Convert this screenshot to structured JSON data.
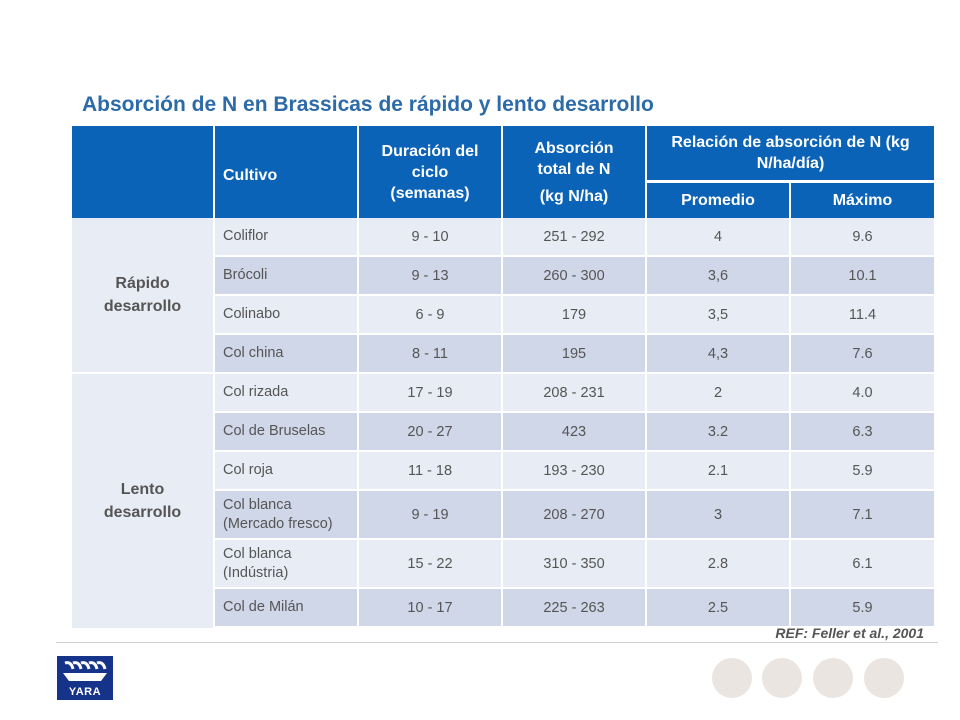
{
  "title": "Absorción de N en Brassicas de rápido y lento desarrollo",
  "header": {
    "cultivo": "Cultivo",
    "duracion": "Duración del ciclo (semanas)",
    "absorcion_line1": "Absorción total de N",
    "absorcion_line2": "(kg N/ha)",
    "relacion": "Relación de absorción de N (kg N/ha/día)",
    "promedio": "Promedio",
    "maximo": "Máximo"
  },
  "groups": [
    {
      "label": "Rápido desarrollo",
      "rows": [
        {
          "cultivo": "Coliflor",
          "duracion": "9 - 10",
          "absorcion": "251 - 292",
          "promedio": "4",
          "maximo": "9.6"
        },
        {
          "cultivo": "Brócoli",
          "duracion": "9 - 13",
          "absorcion": "260 - 300",
          "promedio": "3,6",
          "maximo": "10.1"
        },
        {
          "cultivo": "Colinabo",
          "duracion": "6 - 9",
          "absorcion": "179",
          "promedio": "3,5",
          "maximo": "11.4"
        },
        {
          "cultivo": "Col china",
          "duracion": "8 - 11",
          "absorcion": "195",
          "promedio": "4,3",
          "maximo": "7.6"
        }
      ]
    },
    {
      "label": "Lento desarrollo",
      "rows": [
        {
          "cultivo": "Col rizada",
          "duracion": "17 - 19",
          "absorcion": "208 - 231",
          "promedio": "2",
          "maximo": "4.0"
        },
        {
          "cultivo": "Col de Bruselas",
          "duracion": "20 - 27",
          "absorcion": "423",
          "promedio": "3.2",
          "maximo": "6.3"
        },
        {
          "cultivo": "Col roja",
          "duracion": "11 - 18",
          "absorcion": "193 - 230",
          "promedio": "2.1",
          "maximo": "5.9"
        },
        {
          "cultivo": "Col blanca (Mercado fresco)",
          "duracion": "9 - 19",
          "absorcion": "208 - 270",
          "promedio": "3",
          "maximo": "7.1"
        },
        {
          "cultivo": "Col blanca (Indústria)",
          "duracion": "15 - 22",
          "absorcion": "310 - 350",
          "promedio": "2.8",
          "maximo": "6.1"
        },
        {
          "cultivo": "Col de Milán",
          "duracion": "10 - 17",
          "absorcion": "225 - 263",
          "promedio": "2.5",
          "maximo": "5.9"
        }
      ]
    }
  ],
  "reference": "REF: Feller et al., 2001",
  "logo_text": "YARA",
  "colors": {
    "header_blue": "#0b63b8",
    "title_blue": "#2d6aa8",
    "row_light": "#e8ecf5",
    "row_dark": "#cfd7e8",
    "logo_navy": "#16338a"
  }
}
